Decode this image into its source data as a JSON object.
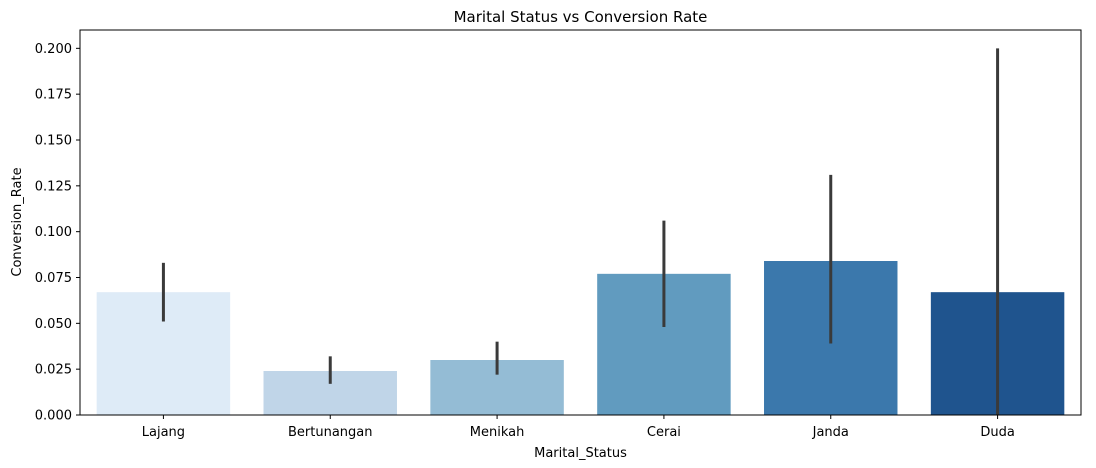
{
  "chart_data": {
    "type": "bar",
    "title": "Marital Status vs Conversion Rate",
    "xlabel": "Marital_Status",
    "ylabel": "Conversion_Rate",
    "ylim": [
      0,
      0.21
    ],
    "yticks": [
      "0.000",
      "0.025",
      "0.050",
      "0.075",
      "0.100",
      "0.125",
      "0.150",
      "0.175",
      "0.200"
    ],
    "categories": [
      "Lajang",
      "Bertunangan",
      "Menikah",
      "Cerai",
      "Janda",
      "Duda"
    ],
    "values": [
      0.067,
      0.024,
      0.03,
      0.077,
      0.084,
      0.067
    ],
    "error_low": [
      0.051,
      0.017,
      0.022,
      0.048,
      0.039,
      0.0
    ],
    "error_high": [
      0.083,
      0.032,
      0.04,
      0.106,
      0.131,
      0.2
    ],
    "colors": [
      "#deebf7",
      "#c0d5e8",
      "#94bcd5",
      "#619bbf",
      "#3b78ac",
      "#1f548e"
    ],
    "error_color": "#3a3a3a",
    "grid": false,
    "legend": "none"
  }
}
